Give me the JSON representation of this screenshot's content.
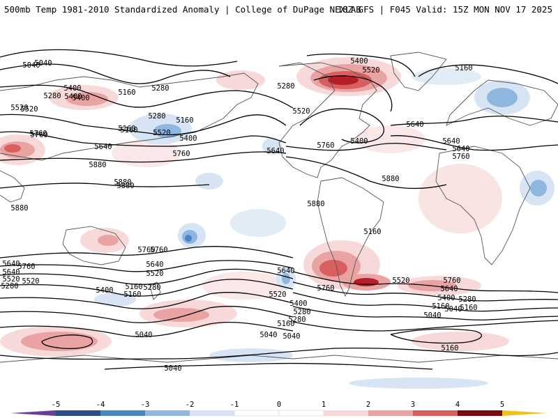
{
  "header": {
    "title": "500mb Temp 1981-2010 Standardized Anomaly | College of DuPage NEXLAB",
    "run": "18Z GFS | F045 Valid: 15Z MON NOV 17 2025"
  },
  "colors": {
    "neg5": "#6a3d9a",
    "neg4": "#2c4f8a",
    "neg3": "#4a86c5",
    "neg2": "#8fb6df",
    "neg1": "#d6e4f3",
    "pos1": "#f7d9d9",
    "pos2": "#eaa3a3",
    "pos3": "#d95f5f",
    "pos4": "#b51f2a",
    "pos5": "#7a0b12",
    "pos6": "#f0c020",
    "land": "#555555",
    "contour": "#000000"
  },
  "colorbar": {
    "ticks": [
      "-5",
      "-4",
      "-3",
      "-2",
      "-1",
      "0",
      "1",
      "2",
      "3",
      "4",
      "5"
    ]
  },
  "contour_labels": {
    "c1": "5040",
    "c2": "5280",
    "c3": "5400",
    "c4": "5160",
    "c5": "5280",
    "c6": "5520",
    "c7": "5160",
    "c8": "5160",
    "c9": "5280",
    "c10": "5760",
    "c11": "5520",
    "c12": "5400",
    "c13": "5640",
    "c14": "5760",
    "c15": "5880",
    "c16": "5880",
    "c17": "5880",
    "c18": "5400",
    "c19": "5520",
    "c20": "5280",
    "c21": "5520",
    "c22": "5640",
    "c23": "5760",
    "c24": "5400",
    "c25": "5160",
    "c26": "5640",
    "c27": "5760",
    "c28": "5880",
    "c29": "5880",
    "c30": "5640",
    "c31": "5760",
    "c32": "5160",
    "c33": "5760",
    "c34": "5640",
    "c35": "5520",
    "c36": "5760",
    "c37": "5640",
    "c38": "5520",
    "c39": "5400",
    "c40": "5280",
    "c41": "5160",
    "c42": "5040",
    "c43": "5760",
    "c44": "5640",
    "c45": "5520",
    "c46": "5400",
    "c47": "5280",
    "c48": "5160",
    "c49": "5040",
    "c50": "5160",
    "c51": "5040",
    "c52": "5040",
    "c53": "5640",
    "c54": "5520",
    "c55": "5400",
    "c56": "5280",
    "c57": "5160",
    "c58": "5040",
    "c59": "5760",
    "c60": "5640",
    "c61": "5520",
    "c62": "5400",
    "c63": "5280",
    "c64": "5160",
    "c65": "5040",
    "c66": "5160",
    "c67": "5760",
    "c68": "5640",
    "c69": "5520",
    "c70": "5400",
    "c71": "5280",
    "c72": "5160",
    "c73": "5040",
    "c74": "5880"
  }
}
